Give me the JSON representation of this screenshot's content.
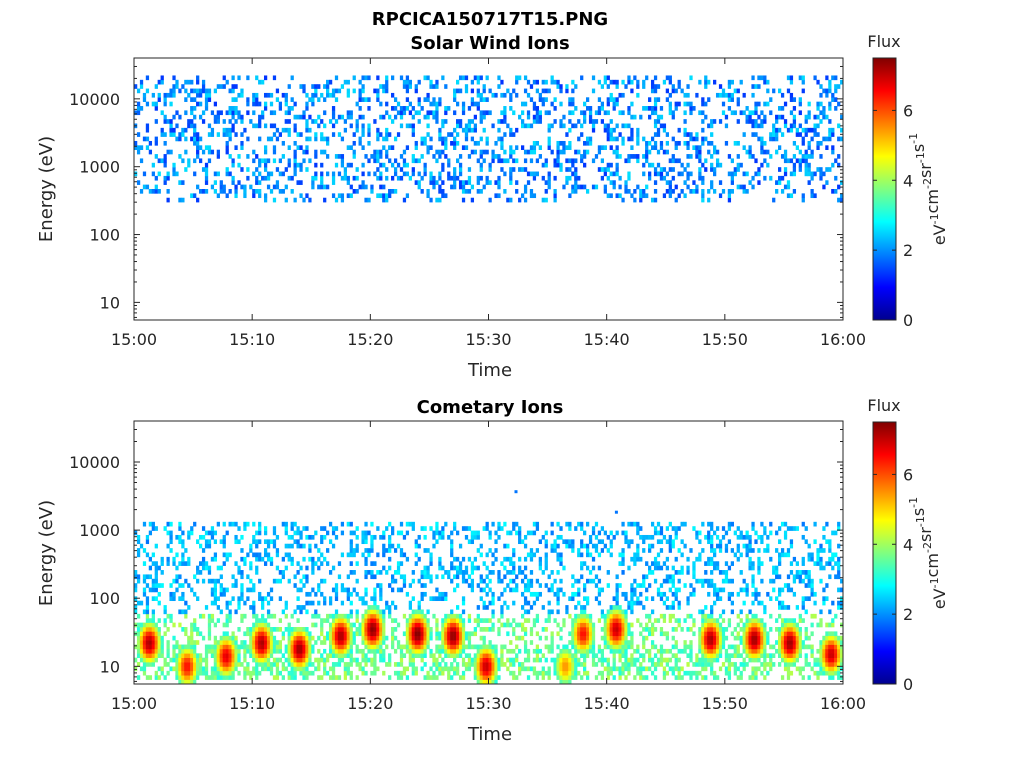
{
  "figure_title": "RPCICA150717T15.PNG",
  "colorbar": {
    "label": "Flux",
    "unit_parts": [
      "eV",
      "-1",
      "cm",
      "-2",
      "sr",
      "-1",
      "s",
      "-1"
    ],
    "ticks": [
      "0",
      "2",
      "4",
      "6"
    ],
    "range": [
      0,
      7.5
    ],
    "colormap": "jet"
  },
  "chart_data": [
    {
      "type": "heatmap",
      "title": "Solar Wind Ions",
      "xlabel": "Time",
      "ylabel": "Energy (eV)",
      "yscale": "log",
      "ylim": [
        5.5,
        40000
      ],
      "xlim_minutes": [
        0,
        60
      ],
      "x_tick_labels": [
        "15:00",
        "15:10",
        "15:20",
        "15:30",
        "15:40",
        "15:50",
        "16:00"
      ],
      "y_tick_labels": [
        "10",
        "100",
        "1000",
        "10000"
      ],
      "y_tick_values": [
        10,
        100,
        1000,
        10000
      ],
      "sparse_band": {
        "e_min": 290,
        "e_max": 22000,
        "flux_range": [
          1.3,
          2.6
        ],
        "density": 0.28
      }
    },
    {
      "type": "heatmap",
      "title": "Cometary Ions",
      "xlabel": "Time",
      "ylabel": "Energy (eV)",
      "yscale": "log",
      "ylim": [
        5.5,
        40000
      ],
      "xlim_minutes": [
        0,
        60
      ],
      "x_tick_labels": [
        "15:00",
        "15:10",
        "15:20",
        "15:30",
        "15:40",
        "15:50",
        "16:00"
      ],
      "y_tick_labels": [
        "10",
        "100",
        "1000",
        "10000"
      ],
      "y_tick_values": [
        10,
        100,
        1000,
        10000
      ],
      "sparse_band": {
        "e_min": 60,
        "e_max": 1300,
        "flux_range": [
          1.8,
          2.8
        ],
        "density": 0.3
      },
      "low_band": {
        "e_min": 6,
        "e_max": 60,
        "flux_range": [
          3.0,
          4.2
        ],
        "density": 0.5
      },
      "isolated_points": [
        {
          "t_min": 32.2,
          "energy": 3600,
          "flux": 1.8
        },
        {
          "t_min": 40.7,
          "energy": 1800,
          "flux": 1.8
        }
      ],
      "bursts": [
        {
          "t_min": 1.3,
          "energy": 22,
          "flux": 7.2
        },
        {
          "t_min": 4.5,
          "energy": 10,
          "flux": 6.5
        },
        {
          "t_min": 7.8,
          "energy": 14,
          "flux": 6.8
        },
        {
          "t_min": 10.8,
          "energy": 22,
          "flux": 7.2
        },
        {
          "t_min": 14.0,
          "energy": 18,
          "flux": 7.3
        },
        {
          "t_min": 17.5,
          "energy": 28,
          "flux": 7.2
        },
        {
          "t_min": 20.2,
          "energy": 35,
          "flux": 7.4
        },
        {
          "t_min": 24.0,
          "energy": 30,
          "flux": 7.5
        },
        {
          "t_min": 27.0,
          "energy": 28,
          "flux": 7.4
        },
        {
          "t_min": 29.8,
          "energy": 10,
          "flux": 7.0
        },
        {
          "t_min": 36.5,
          "energy": 10,
          "flux": 5.5
        },
        {
          "t_min": 38.0,
          "energy": 30,
          "flux": 6.5
        },
        {
          "t_min": 40.8,
          "energy": 35,
          "flux": 7.0
        },
        {
          "t_min": 48.8,
          "energy": 25,
          "flux": 7.2
        },
        {
          "t_min": 52.5,
          "energy": 25,
          "flux": 7.3
        },
        {
          "t_min": 55.5,
          "energy": 22,
          "flux": 7.3
        },
        {
          "t_min": 59.0,
          "energy": 15,
          "flux": 7.0
        }
      ]
    }
  ]
}
